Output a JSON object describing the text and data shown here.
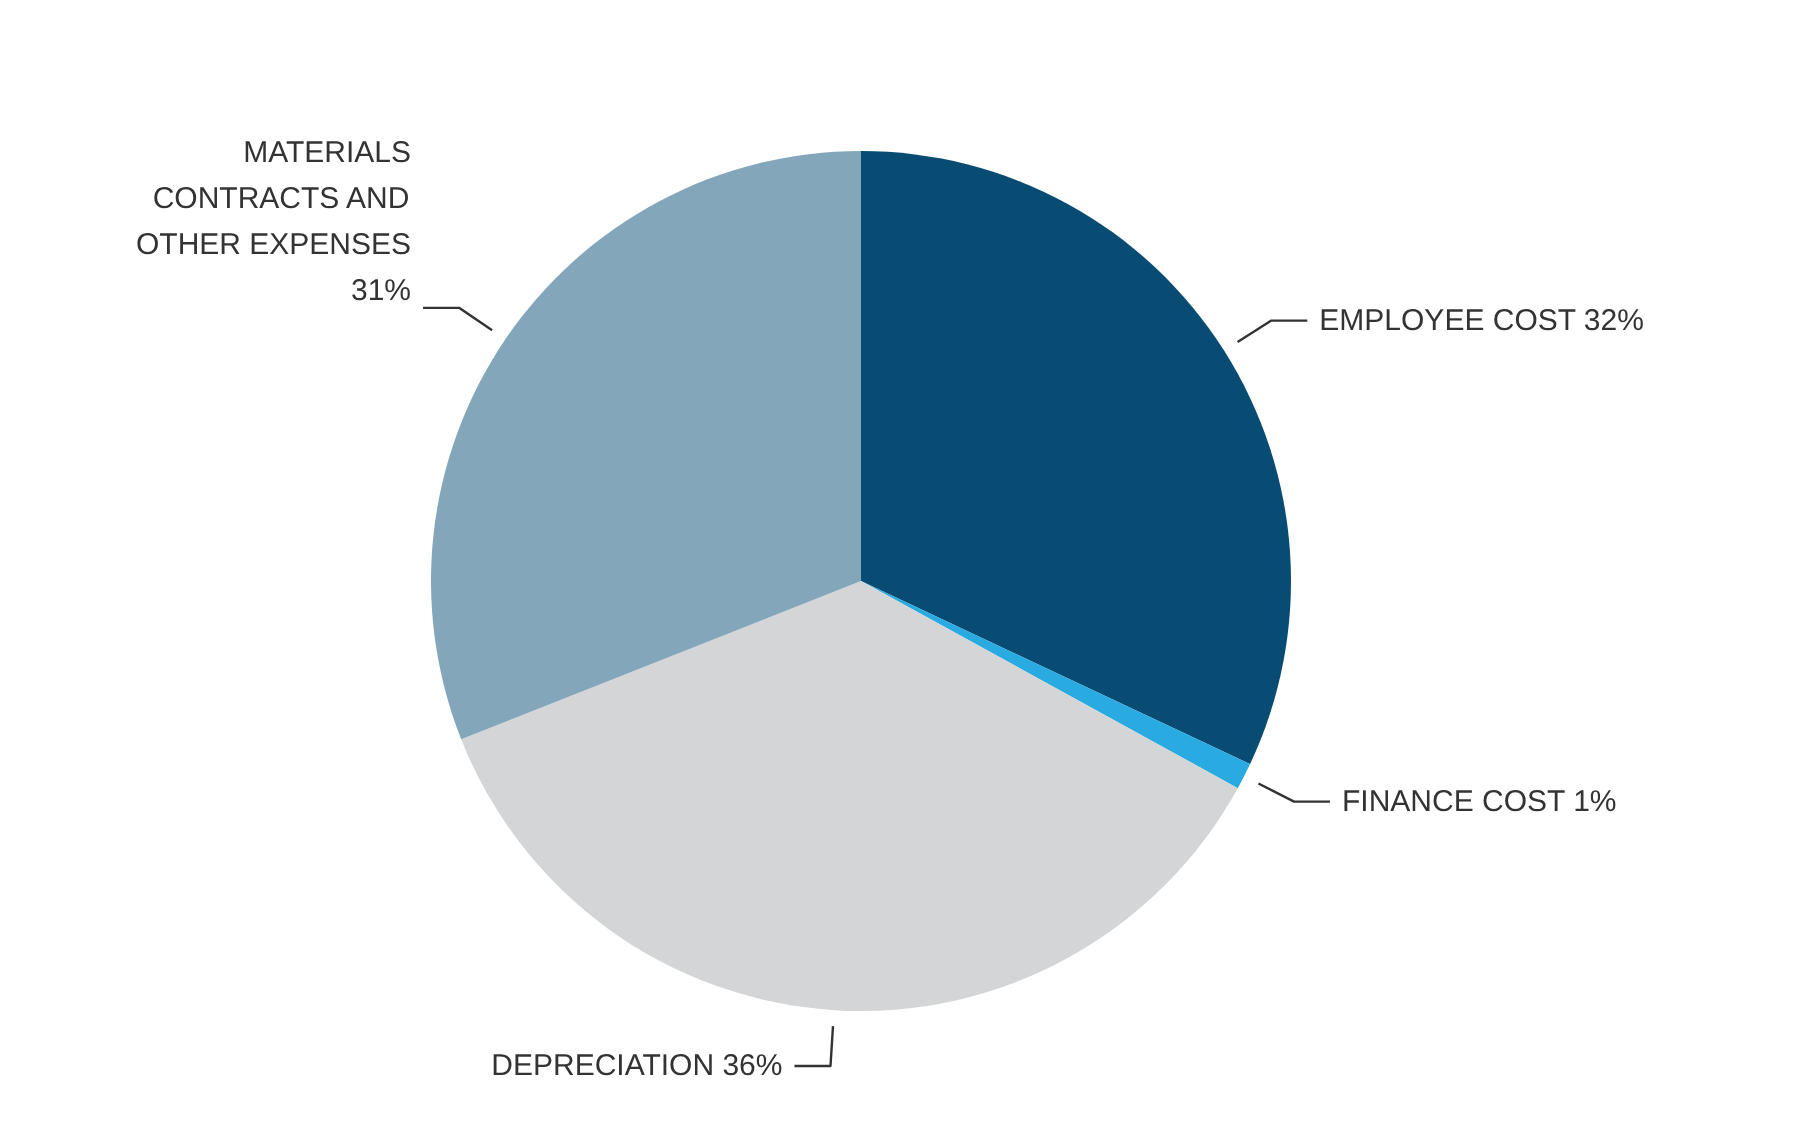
{
  "chart_data": {
    "type": "pie",
    "categories": [
      "EMPLOYEE COST",
      "FINANCE COST",
      "DEPRECIATION",
      "MATERIALS CONTRACTS AND OTHER EXPENSES"
    ],
    "values": [
      32,
      1,
      36,
      31
    ],
    "colors": [
      "#084c73",
      "#29abe2",
      "#d3d5d7",
      "#84a6ba"
    ],
    "value_labels": [
      "32%",
      "1%",
      "36%",
      "31%"
    ]
  }
}
